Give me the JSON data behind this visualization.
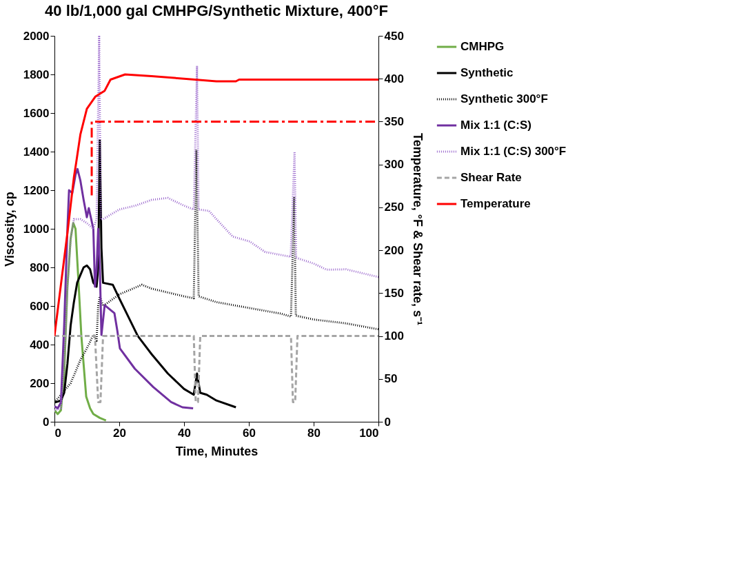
{
  "chart_data": {
    "type": "line",
    "title": "40 lb/1,000 gal CMHPG/Synthetic Mixture, 400°F",
    "xlabel": "Time, Minutes",
    "ylabel": "Viscosity, cp",
    "y2label": "Temperature, °F & Shear rate, s⁻¹",
    "xlim": [
      0,
      100
    ],
    "xticks": [
      0,
      20,
      40,
      60,
      80,
      100
    ],
    "ylim": [
      0,
      2000
    ],
    "yticks": [
      0,
      200,
      400,
      600,
      800,
      1000,
      1200,
      1400,
      1600,
      1800,
      2000
    ],
    "y2lim": [
      0,
      450
    ],
    "y2ticks": [
      0,
      50,
      100,
      150,
      200,
      250,
      300,
      350,
      400,
      450
    ],
    "grid": false,
    "legend": "right",
    "marker": "none",
    "series": [
      {
        "name": "CMHPG",
        "color": "#70ad47",
        "line_style": "solid",
        "x": [
          0,
          1,
          2,
          3,
          4,
          5,
          5.8,
          6.5,
          7.5,
          8.3,
          9.8,
          11,
          12,
          14,
          15.9
        ],
        "values": [
          60,
          40,
          60,
          250,
          700,
          950,
          1030,
          1000,
          700,
          445,
          130,
          70,
          40,
          20,
          7
        ]
      },
      {
        "name": "Synthetic",
        "color": "#000000",
        "line_style": "solid",
        "x": [
          0,
          2,
          3,
          4,
          5,
          6,
          7,
          8,
          9,
          10,
          11,
          12,
          13,
          13.5,
          14,
          14.5,
          15,
          18,
          20,
          25.7,
          30,
          35,
          40,
          43,
          44,
          45,
          47,
          50,
          56
        ],
        "values": [
          100,
          110,
          150,
          300,
          500,
          620,
          720,
          760,
          800,
          810,
          790,
          720,
          700,
          800,
          1460,
          900,
          720,
          710,
          640,
          445,
          350,
          250,
          170,
          140,
          250,
          150,
          140,
          110,
          75
        ]
      },
      {
        "name": "Synthetic 300°F",
        "color": "#000000",
        "line_style": "dotted",
        "x": [
          0,
          5,
          8,
          10,
          12,
          13,
          13.5,
          14,
          15,
          20,
          27,
          30,
          40,
          43,
          43.8,
          44.5,
          50,
          60,
          70,
          73,
          74,
          74.5,
          80,
          90,
          100
        ],
        "values": [
          100,
          200,
          320,
          380,
          450,
          420,
          600,
          650,
          600,
          660,
          710,
          690,
          650,
          640,
          1409,
          650,
          620,
          590,
          560,
          545,
          1165,
          550,
          530,
          510,
          479
        ]
      },
      {
        "name": "Mix 1:1 (C:S)",
        "color": "#7030a0",
        "line_style": "solid",
        "x": [
          0,
          1,
          2,
          3,
          4,
          4.5,
          5.5,
          6.5,
          7.1,
          8,
          9,
          10,
          10.6,
          12,
          12.5,
          13,
          13.5,
          14,
          14.5,
          15.5,
          18.5,
          19.4,
          20.2,
          24.8,
          30.5,
          36,
          39.5,
          42.8
        ],
        "values": [
          80,
          70,
          100,
          500,
          1000,
          1200,
          1185,
          1280,
          1310,
          1250,
          1150,
          1060,
          1107,
          1000,
          700,
          788,
          1000,
          800,
          450,
          604,
          563,
          472,
          380,
          275,
          180,
          102,
          75,
          70
        ]
      },
      {
        "name": "Mix 1:1 (C:S) 300°F",
        "color": "#9966cc",
        "line_style": "dotted",
        "x": [
          0,
          2,
          3,
          4,
          5,
          6,
          8,
          10,
          12,
          13,
          13.8,
          14.3,
          15,
          20,
          25,
          30,
          35,
          40,
          43,
          44,
          44.5,
          47.7,
          50,
          55,
          60.3,
          65,
          72.9,
          74.1,
          74.6,
          80,
          84,
          90,
          100
        ],
        "values": [
          60,
          70,
          300,
          700,
          950,
          1050,
          1050,
          1030,
          1000,
          1050,
          1997,
          1050,
          1050,
          1100,
          1120,
          1150,
          1160,
          1120,
          1100,
          1844,
          1100,
          1093,
          1050,
          960,
          934,
          880,
          855,
          1399,
          850,
          820,
          788,
          790,
          750
        ]
      },
      {
        "name": "Shear Rate",
        "color": "#a5a5a5",
        "line_style": "dashed",
        "axis": "y2",
        "x": [
          0,
          12.5,
          13.5,
          14.2,
          15,
          43,
          43.6,
          44.3,
          45,
          73,
          73.6,
          74.3,
          75,
          100
        ],
        "values": [
          100,
          100,
          23,
          23,
          100,
          100,
          23,
          23,
          100,
          100,
          23,
          23,
          100,
          100
        ]
      },
      {
        "name": "Temperature",
        "color": "#ff0000",
        "line_style": "solid",
        "axis": "y2",
        "x": [
          0,
          2,
          4,
          6,
          6.7,
          8,
          10,
          12.6,
          15.5,
          17.3,
          21.8,
          30,
          40,
          50,
          56,
          57,
          100
        ],
        "values": [
          100,
          160,
          220,
          285,
          302,
          335,
          365,
          379,
          386,
          399,
          405,
          403,
          400,
          397,
          397,
          399,
          399
        ]
      },
      {
        "color": "#ff0000",
        "line_style": "dashed",
        "axis": "y2",
        "x": [
          11.5,
          11.5,
          100
        ],
        "values": [
          264,
          350,
          350
        ]
      }
    ]
  }
}
